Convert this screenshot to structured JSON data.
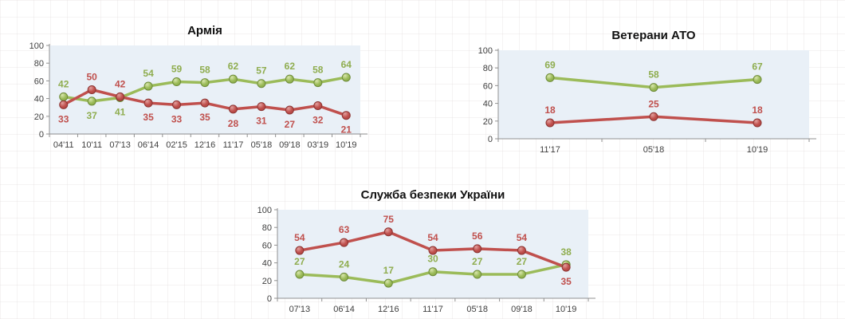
{
  "page": {
    "description": "Three small-multiple line charts on a white sheet with a faint grid background",
    "language": "uk"
  },
  "colors": {
    "plot_fill": "#E9F0F7",
    "axis_line": "#909090",
    "tick_text": "#3F3F3F",
    "title_text": "#111111",
    "series_styles": {
      "green": {
        "line": "#9BBB59",
        "stroke": "#6E8C39",
        "light": "#D9E6AD",
        "dark": "#85A544",
        "label": "#8FAD4F"
      },
      "red": {
        "line": "#C0504D",
        "stroke": "#8C3432",
        "light": "#E2A19F",
        "dark": "#AB423F",
        "label": "#C0504D"
      }
    }
  },
  "chart_data": [
    {
      "type": "line",
      "title": "Армія",
      "categories": [
        "04'11",
        "10'11",
        "07'13",
        "06'14",
        "02'15",
        "12'16",
        "11'17",
        "05'18",
        "09'18",
        "03'19",
        "10'19"
      ],
      "series": [
        {
          "name": "green",
          "values": [
            42,
            37,
            41,
            54,
            59,
            58,
            62,
            57,
            62,
            58,
            64
          ],
          "label_sides": [
            "above",
            "below",
            "below",
            "above",
            "above",
            "above",
            "above",
            "above",
            "above",
            "above",
            "above"
          ]
        },
        {
          "name": "red",
          "values": [
            33,
            50,
            42,
            35,
            33,
            35,
            28,
            31,
            27,
            32,
            21
          ],
          "label_sides": [
            "below",
            "above",
            "above",
            "below",
            "below",
            "below",
            "below",
            "below",
            "below",
            "below",
            "below"
          ]
        }
      ],
      "ylim": [
        0,
        100
      ],
      "yticks": [
        0,
        20,
        40,
        60,
        80,
        100
      ],
      "grid": false,
      "legend": false
    },
    {
      "type": "line",
      "title": "Ветерани АТО",
      "categories": [
        "11'17",
        "05'18",
        "10'19"
      ],
      "series": [
        {
          "name": "green",
          "values": [
            69,
            58,
            67
          ],
          "label_sides": [
            "above",
            "above",
            "above"
          ]
        },
        {
          "name": "red",
          "values": [
            18,
            25,
            18
          ],
          "label_sides": [
            "above",
            "above",
            "above"
          ]
        }
      ],
      "ylim": [
        0,
        100
      ],
      "yticks": [
        0,
        20,
        40,
        60,
        80,
        100
      ],
      "grid": false,
      "legend": false
    },
    {
      "type": "line",
      "title": "Служба безпеки України",
      "categories": [
        "07'13",
        "06'14",
        "12'16",
        "11'17",
        "05'18",
        "09'18",
        "10'19"
      ],
      "series": [
        {
          "name": "green",
          "values": [
            27,
            24,
            17,
            30,
            27,
            27,
            38
          ],
          "label_sides": [
            "above",
            "above",
            "above",
            "above",
            "above",
            "above",
            "above"
          ]
        },
        {
          "name": "red",
          "values": [
            54,
            63,
            75,
            54,
            56,
            54,
            35
          ],
          "label_sides": [
            "above",
            "above",
            "above",
            "above",
            "above",
            "above",
            "below"
          ]
        }
      ],
      "ylim": [
        0,
        100
      ],
      "yticks": [
        0,
        20,
        40,
        60,
        80,
        100
      ],
      "grid": false,
      "legend": false
    }
  ]
}
